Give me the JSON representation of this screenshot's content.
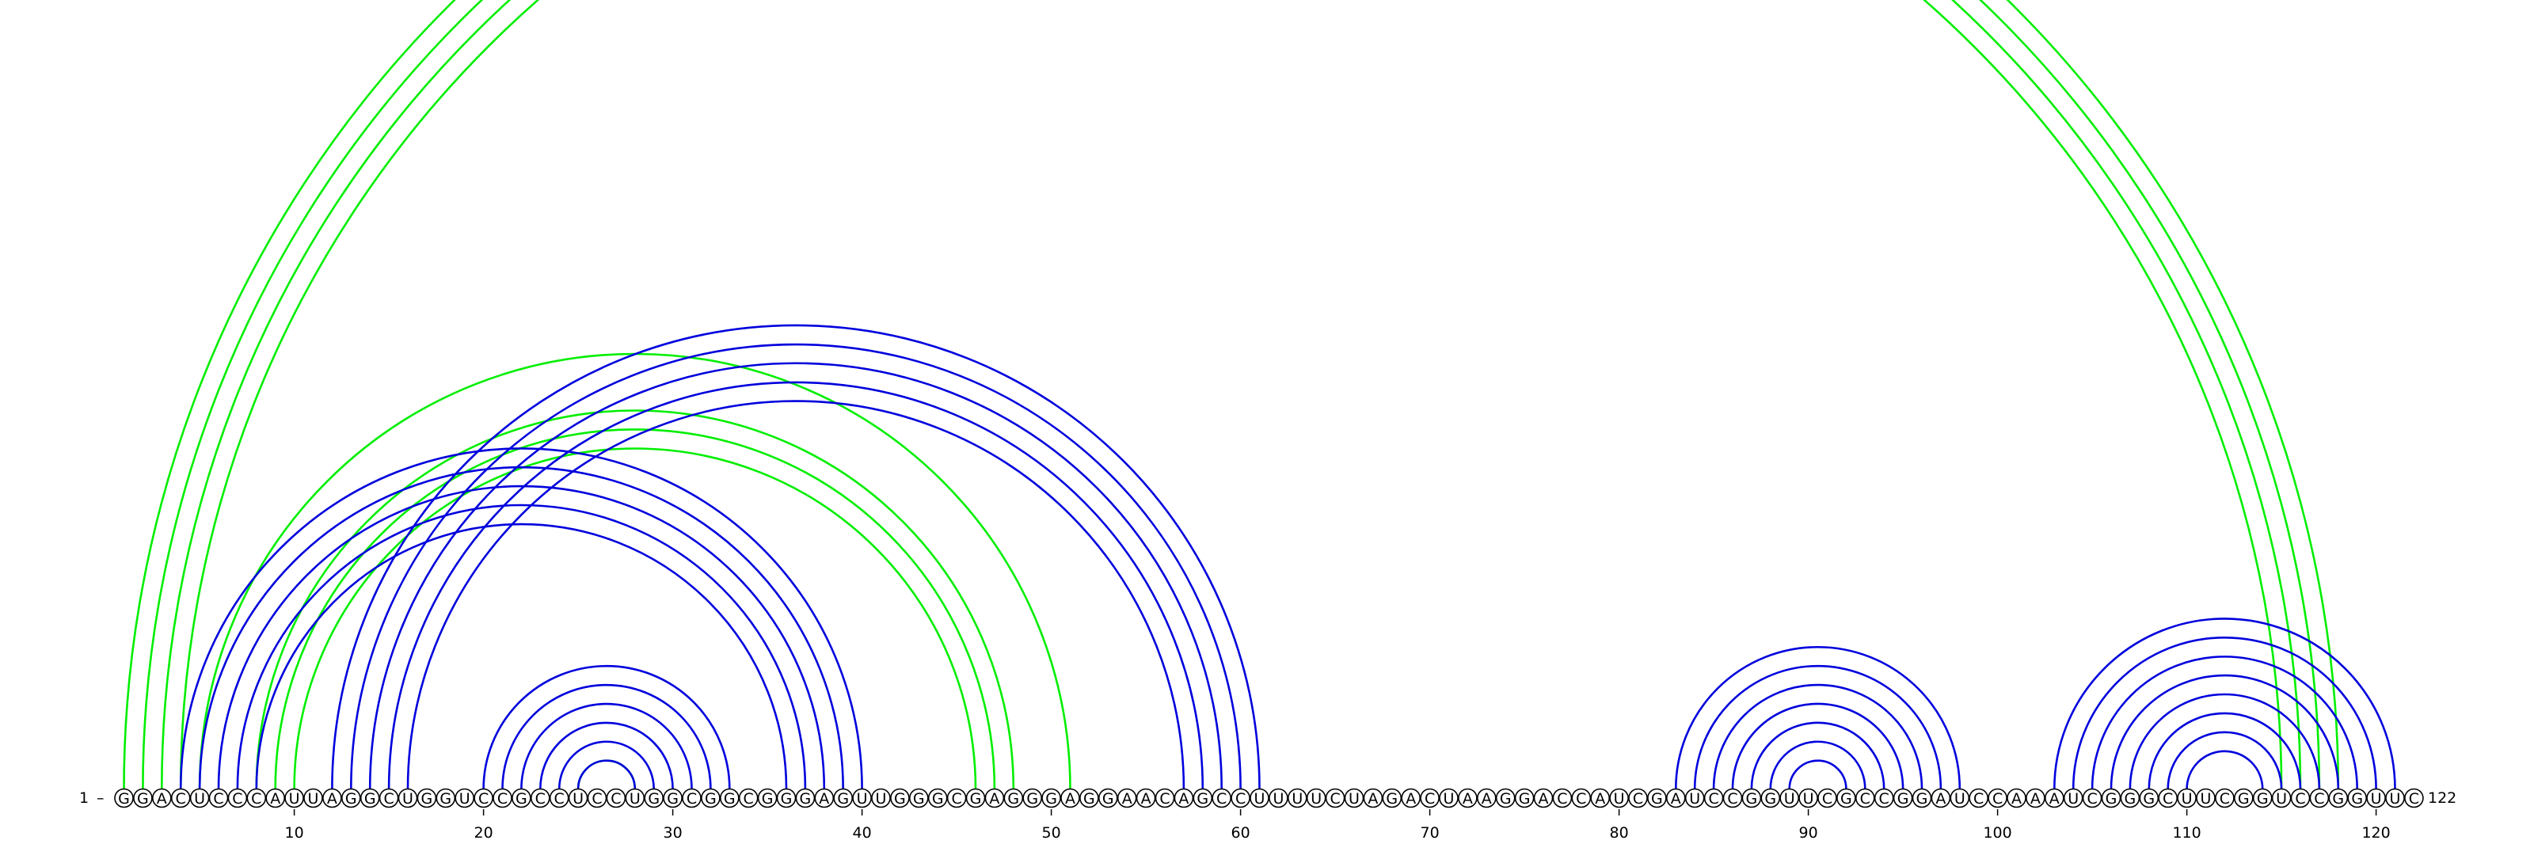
{
  "sequence": "GGACUCCCAUUAGGCUGGUCCGCCUCCUGGCGGCGGGAGUUGGGCGAGGGAGGAACAGCCUUUUCUAGACUAAGGACCAUCGAUCCGGUUCGCCGGAUCCAAAUCGGGCUUCGGUCCGGUUC",
  "length": 122,
  "start_label": "1",
  "end_label": "122",
  "tick_values": [
    "10",
    "20",
    "30",
    "40",
    "50",
    "60",
    "70",
    "80",
    "90",
    "100",
    "110",
    "120"
  ],
  "colors": {
    "blue": "#0000dd",
    "green": "#00ee00"
  },
  "helices": [
    {
      "color": "green",
      "i": 1,
      "j": 118,
      "len": 3
    },
    {
      "color": "green",
      "i": 4,
      "j": 115,
      "len": 1
    },
    {
      "color": "green",
      "i": 8,
      "j": 48,
      "len": 3
    },
    {
      "color": "green",
      "i": 5,
      "j": 51,
      "len": 1
    },
    {
      "color": "green",
      "i": 25,
      "j": 28,
      "len": 1
    },
    {
      "color": "blue",
      "i": 4,
      "j": 40,
      "len": 5
    },
    {
      "color": "blue",
      "i": 12,
      "j": 61,
      "len": 5
    },
    {
      "color": "blue",
      "i": 20,
      "j": 33,
      "len": 6
    },
    {
      "color": "blue",
      "i": 83,
      "j": 98,
      "len": 7
    },
    {
      "color": "blue",
      "i": 103,
      "j": 121,
      "len": 8
    }
  ]
}
